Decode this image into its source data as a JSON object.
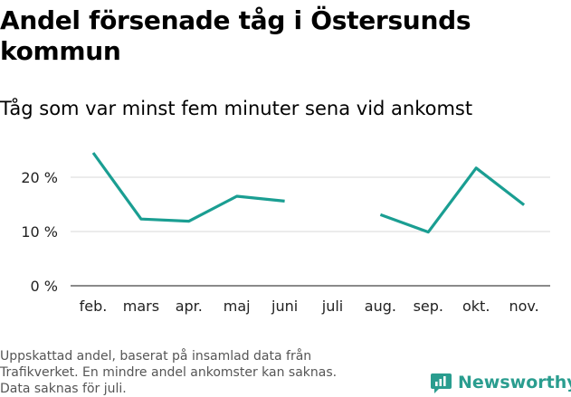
{
  "title": "Andel försenade tåg i Östersunds kommun",
  "subtitle": "Tåg som var minst fem minuter sena vid ankomst",
  "note_lines": [
    "Uppskattad andel, baserat på insamlad data från",
    "Trafikverket. En mindre andel ankomster kan saknas.",
    "Data saknas för juli."
  ],
  "brand": {
    "name": "Newsworthy",
    "icon": "newsworthy-logo-icon",
    "color": "#2a9d8f"
  },
  "chart_data": {
    "type": "line",
    "categories": [
      "feb.",
      "mars",
      "apr.",
      "maj",
      "juni",
      "juli",
      "aug.",
      "sep.",
      "okt.",
      "nov."
    ],
    "series": [
      {
        "values": [
          24.5,
          12.3,
          11.9,
          16.5,
          15.6,
          null,
          13.1,
          9.9,
          21.7,
          14.9
        ],
        "color": "#1a9e92"
      }
    ],
    "ylim": [
      0,
      25
    ],
    "yticks": [
      0,
      10,
      20
    ],
    "ytick_labels": [
      "0 %",
      "10 %",
      "20 %"
    ],
    "grid": true,
    "legend": "none"
  }
}
